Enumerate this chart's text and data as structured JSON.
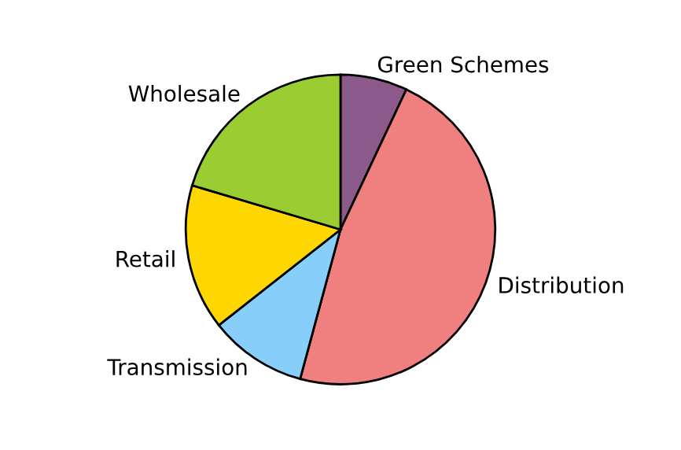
{
  "chart_data": {
    "type": "pie",
    "categories": [
      "Green Schemes",
      "Distribution",
      "Transmission",
      "Retail",
      "Wholesale"
    ],
    "values": [
      7,
      47.2,
      10.2,
      15.2,
      20.4
    ],
    "colors": [
      "#8b5a8b",
      "#f08080",
      "#87cefa",
      "#ffd700",
      "#9acd32"
    ]
  }
}
